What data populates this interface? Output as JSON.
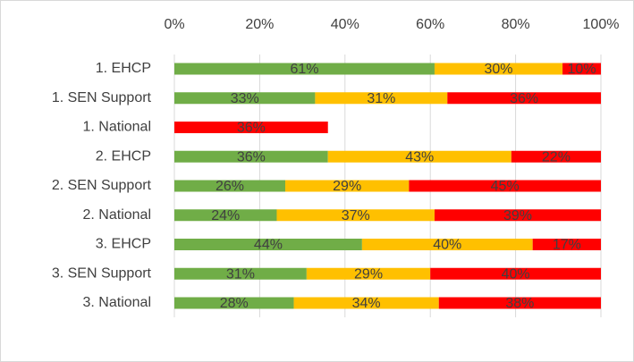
{
  "chart_data": {
    "type": "stacked_bar_horizontal",
    "categories": [
      "1. EHCP",
      "1. SEN Support",
      "1. National",
      "2. EHCP",
      "2. SEN Support",
      "2. National",
      "3. EHCP",
      "3. SEN Support",
      "3. National"
    ],
    "series": [
      {
        "color": "#70ad47",
        "values": [
          61,
          33,
          null,
          36,
          26,
          24,
          44,
          31,
          28
        ],
        "value_labels": [
          "61%",
          "33%",
          null,
          "36%",
          "26%",
          "24%",
          "44%",
          "31%",
          "28%"
        ]
      },
      {
        "color": "#ffc000",
        "values": [
          30,
          31,
          null,
          43,
          29,
          37,
          40,
          29,
          34
        ],
        "value_labels": [
          "30%",
          "31%",
          null,
          "43%",
          "29%",
          "37%",
          "40%",
          "29%",
          "34%"
        ]
      },
      {
        "color": "#ff0000",
        "values": [
          10,
          36,
          36,
          22,
          45,
          39,
          17,
          40,
          38
        ],
        "value_labels": [
          "10%",
          "36%",
          "36%",
          "22%",
          "45%",
          "39%",
          "17%",
          "40%",
          "38%"
        ]
      }
    ],
    "xlim": [
      0,
      100
    ],
    "xticks": [
      {
        "value": 0,
        "label": "0%"
      },
      {
        "value": 20,
        "label": "20%"
      },
      {
        "value": 40,
        "label": "40%"
      },
      {
        "value": 60,
        "label": "60%"
      },
      {
        "value": 80,
        "label": "80%"
      },
      {
        "value": 100,
        "label": "100%"
      }
    ],
    "grid": true
  }
}
